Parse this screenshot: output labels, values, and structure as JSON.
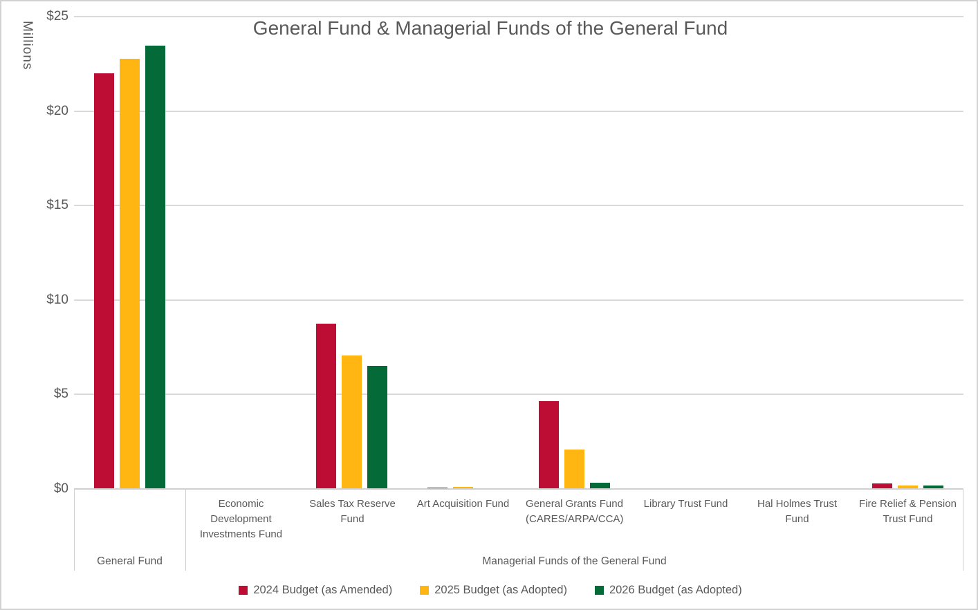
{
  "chart_data": {
    "type": "bar",
    "title": "General Fund & Managerial Funds of the General Fund",
    "y_unit_label": "Millions",
    "y_axis": {
      "min": 0,
      "max": 25,
      "grid": true,
      "ticks": [
        {
          "label": "$25",
          "value": 25
        },
        {
          "label": "$20",
          "value": 20
        },
        {
          "label": "$15",
          "value": 15
        },
        {
          "label": "$10",
          "value": 10
        },
        {
          "label": "$5",
          "value": 5
        },
        {
          "label": "$0",
          "value": 0
        }
      ]
    },
    "categories": [
      "General Fund",
      "Economic Development Investments Fund",
      "Sales Tax Reserve Fund",
      "Art Acquisition Fund",
      "General Grants Fund (CARES/ARPA/CCA)",
      "Library Trust Fund",
      "Hal Holmes Trust Fund",
      "Fire Relief & Pension Trust Fund"
    ],
    "category_axis_top_labels": [
      "",
      "Economic Development Investments Fund",
      "Sales Tax Reserve Fund",
      "Art Acquisition Fund",
      "General Grants Fund (CARES/ARPA/CCA)",
      "Library Trust Fund",
      "Hal Holmes Trust Fund",
      "Fire Relief & Pension Trust Fund"
    ],
    "category_groups": [
      {
        "label": "General Fund",
        "start": 0,
        "count": 1
      },
      {
        "label": "Managerial Funds of the General Fund",
        "start": 1,
        "count": 7
      }
    ],
    "series": [
      {
        "name": "2024 Budget (as Amended)",
        "color": "#BE0D34",
        "values": [
          22.0,
          0,
          8.75,
          0.08,
          4.65,
          0,
          0,
          0.28
        ]
      },
      {
        "name": "2025 Budget (as Adopted)",
        "color": "#FFB612",
        "values": [
          22.75,
          0,
          7.05,
          0.12,
          2.1,
          0,
          0,
          0.2
        ]
      },
      {
        "name": "2026 Budget (as Adopted)",
        "color": "#046A38",
        "values": [
          23.45,
          0,
          6.5,
          0,
          0.33,
          0,
          0,
          0.2
        ]
      }
    ],
    "legend_position": "bottom",
    "grid_color": "#D9D9D9",
    "text_color": "#595959"
  }
}
